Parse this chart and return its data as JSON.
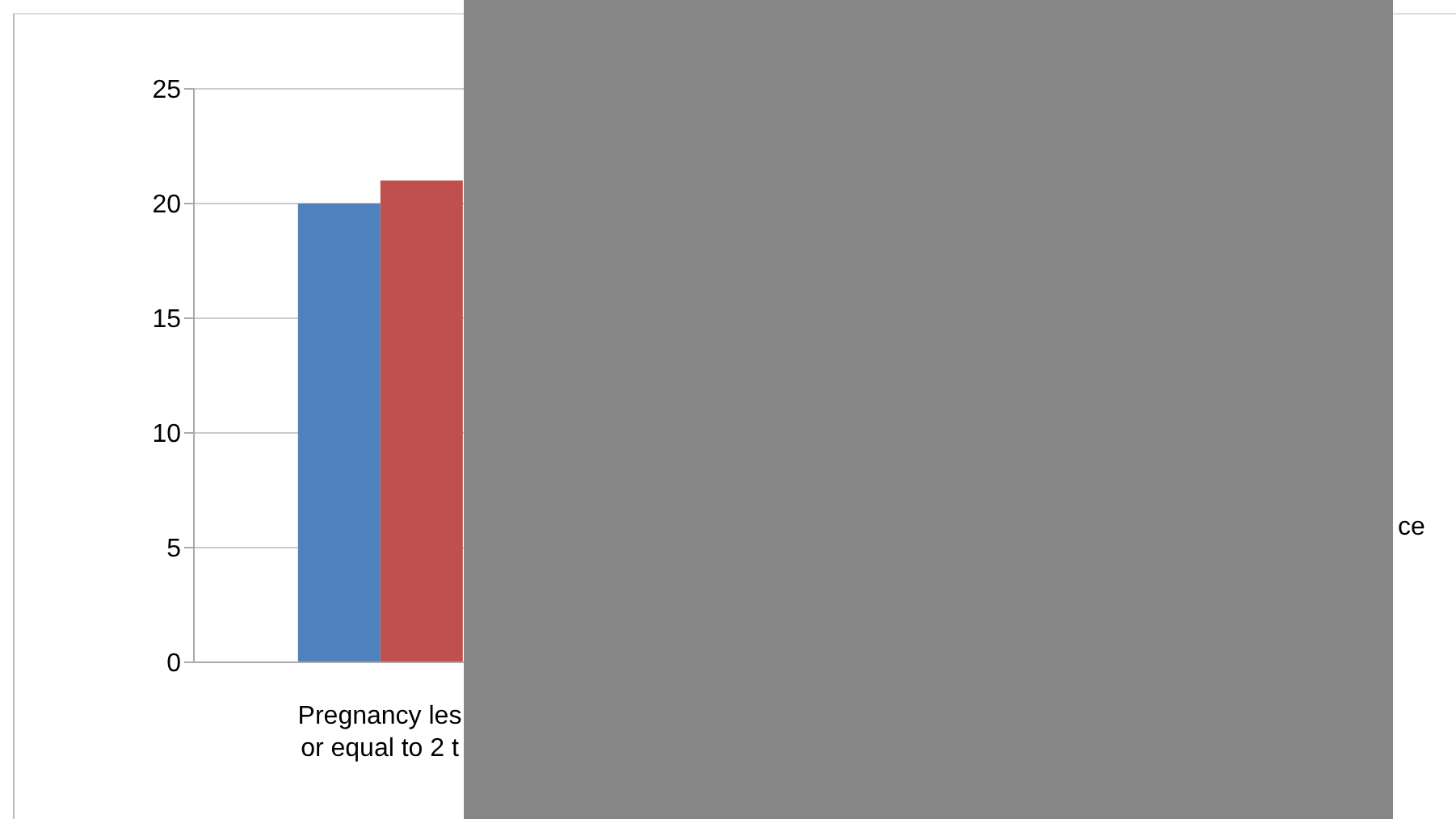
{
  "chart_data": {
    "type": "bar",
    "categories": [
      "Pregnancy les\nor equal to 2 t",
      null,
      null
    ],
    "series": [
      {
        "color": "#4f81bd",
        "values": [
          20,
          null,
          null
        ]
      },
      {
        "color": "#c0504d",
        "values": [
          21,
          null,
          null
        ]
      }
    ],
    "ylim": [
      0,
      25
    ],
    "yticks": [
      0,
      5,
      10,
      15,
      20,
      25
    ],
    "grid": "y",
    "annotations": [
      "ce"
    ]
  }
}
